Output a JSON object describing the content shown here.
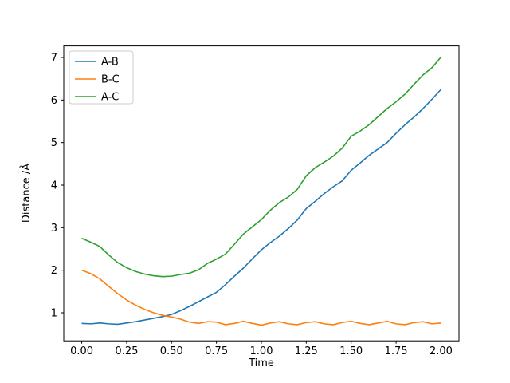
{
  "figure": {
    "background": "#ffffff"
  },
  "chart_data": {
    "type": "line",
    "title": "",
    "xlabel": "Time",
    "ylabel": "Distance /Å",
    "xlim": [
      -0.1,
      2.1
    ],
    "ylim": [
      0.34,
      7.27
    ],
    "grid": false,
    "legend_position": "upper-left",
    "xticks": [
      0.0,
      0.25,
      0.5,
      0.75,
      1.0,
      1.25,
      1.5,
      1.75,
      2.0
    ],
    "xtick_labels": [
      "0.00",
      "0.25",
      "0.50",
      "0.75",
      "1.00",
      "1.25",
      "1.50",
      "1.75",
      "2.00"
    ],
    "yticks": [
      1,
      2,
      3,
      4,
      5,
      6,
      7
    ],
    "ytick_labels": [
      "1",
      "2",
      "3",
      "4",
      "5",
      "6",
      "7"
    ],
    "x": [
      0.0,
      0.05,
      0.1,
      0.15,
      0.2,
      0.25,
      0.3,
      0.35,
      0.4,
      0.45,
      0.5,
      0.55,
      0.6,
      0.65,
      0.7,
      0.75,
      0.8,
      0.85,
      0.9,
      0.95,
      1.0,
      1.05,
      1.1,
      1.15,
      1.2,
      1.25,
      1.3,
      1.35,
      1.4,
      1.45,
      1.5,
      1.55,
      1.6,
      1.65,
      1.7,
      1.75,
      1.8,
      1.85,
      1.9,
      1.95,
      2.0
    ],
    "series": [
      {
        "name": "A-B",
        "color": "#1f77b4",
        "values": [
          0.75,
          0.74,
          0.76,
          0.74,
          0.73,
          0.76,
          0.79,
          0.83,
          0.87,
          0.91,
          0.96,
          1.05,
          1.15,
          1.26,
          1.37,
          1.48,
          1.66,
          1.86,
          2.05,
          2.27,
          2.48,
          2.65,
          2.8,
          2.98,
          3.18,
          3.45,
          3.62,
          3.8,
          3.96,
          4.1,
          4.35,
          4.52,
          4.7,
          4.85,
          5.0,
          5.22,
          5.42,
          5.6,
          5.8,
          6.02,
          6.25
        ]
      },
      {
        "name": "B-C",
        "color": "#ff7f0e",
        "values": [
          2.0,
          1.92,
          1.8,
          1.62,
          1.45,
          1.3,
          1.18,
          1.08,
          1.0,
          0.94,
          0.9,
          0.85,
          0.78,
          0.75,
          0.79,
          0.78,
          0.72,
          0.75,
          0.8,
          0.75,
          0.71,
          0.76,
          0.79,
          0.74,
          0.72,
          0.77,
          0.79,
          0.74,
          0.72,
          0.77,
          0.8,
          0.75,
          0.72,
          0.76,
          0.8,
          0.74,
          0.72,
          0.77,
          0.79,
          0.74,
          0.76
        ]
      },
      {
        "name": "A-C",
        "color": "#2ca02c",
        "values": [
          2.75,
          2.66,
          2.56,
          2.36,
          2.18,
          2.06,
          1.97,
          1.91,
          1.87,
          1.85,
          1.86,
          1.9,
          1.93,
          2.01,
          2.16,
          2.26,
          2.38,
          2.61,
          2.85,
          3.02,
          3.19,
          3.41,
          3.59,
          3.72,
          3.9,
          4.22,
          4.41,
          4.54,
          4.68,
          4.87,
          5.15,
          5.27,
          5.42,
          5.61,
          5.8,
          5.96,
          6.14,
          6.37,
          6.59,
          6.76,
          7.01
        ]
      }
    ]
  }
}
